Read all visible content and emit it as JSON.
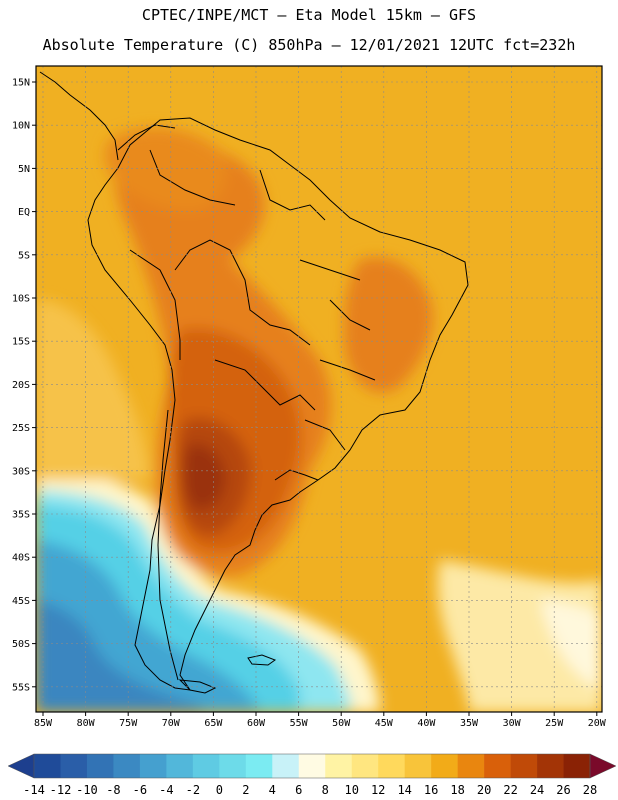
{
  "header": {
    "line1": "CPTEC/INPE/MCT –  Eta Model 15km – GFS",
    "line2": "Absolute Temperature (C) 850hPa – 12/01/2021 12UTC fct=232h"
  },
  "map": {
    "region": "South America",
    "lat_labels": [
      "15N",
      "10N",
      "5N",
      "EQ",
      "5S",
      "10S",
      "15S",
      "20S",
      "25S",
      "30S",
      "35S",
      "40S",
      "45S",
      "50S",
      "55S"
    ],
    "lon_labels": [
      "85W",
      "80W",
      "75W",
      "70W",
      "65W",
      "60W",
      "55W",
      "50W",
      "45W",
      "40W",
      "35W",
      "30W",
      "25W",
      "20W"
    ],
    "lat_range": [
      15,
      -58
    ],
    "lon_range": [
      -85,
      -20
    ]
  },
  "colorbar": {
    "tick_labels": [
      "-14",
      "-12",
      "-10",
      "-8",
      "-6",
      "-4",
      "-2",
      "0",
      "2",
      "4",
      "6",
      "8",
      "10",
      "12",
      "14",
      "16",
      "18",
      "20",
      "22",
      "24",
      "26",
      "28"
    ],
    "low_color": "#1d3f8e",
    "high_color": "#7a0a2a",
    "colors": [
      "#1f4b99",
      "#2a5ea8",
      "#3273b5",
      "#3b89c2",
      "#45a0cf",
      "#52b7da",
      "#5fcbe3",
      "#6ddbe9",
      "#7bebf2",
      "#c8f2f8",
      "#fffbe3",
      "#fff3a4",
      "#ffe680",
      "#ffd95c",
      "#f8c43a",
      "#f2ab18",
      "#e9860f",
      "#d9600a",
      "#c04a08",
      "#a33406",
      "#8a2205"
    ]
  }
}
